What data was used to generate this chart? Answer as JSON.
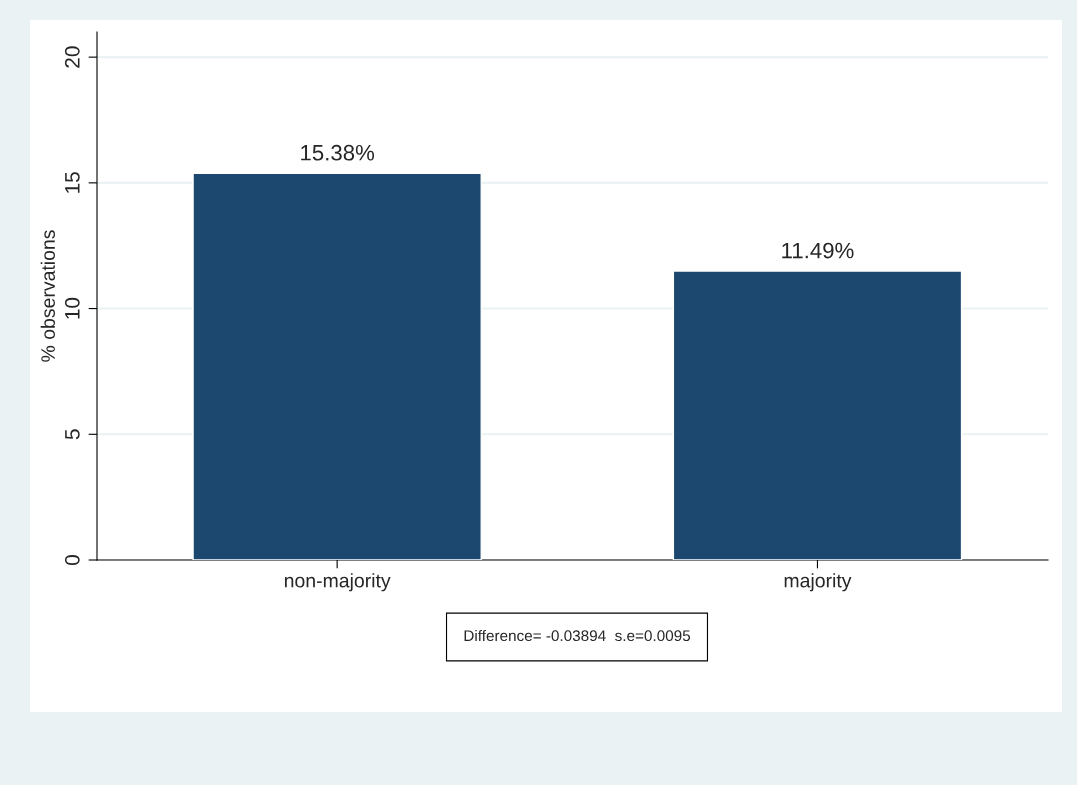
{
  "chart_data": {
    "type": "bar",
    "ylabel": "% observations",
    "categories": [
      "non-majority",
      "majority"
    ],
    "values": [
      15.38,
      11.49
    ],
    "value_labels": [
      "15.38%",
      "11.49%"
    ],
    "color": "#1c4870",
    "ylim": [
      0,
      21
    ],
    "yticks": [
      0,
      5,
      10,
      15,
      20
    ],
    "grid": "y",
    "annotations": [
      "Difference= -0.03894  s.e=0.0095"
    ]
  }
}
